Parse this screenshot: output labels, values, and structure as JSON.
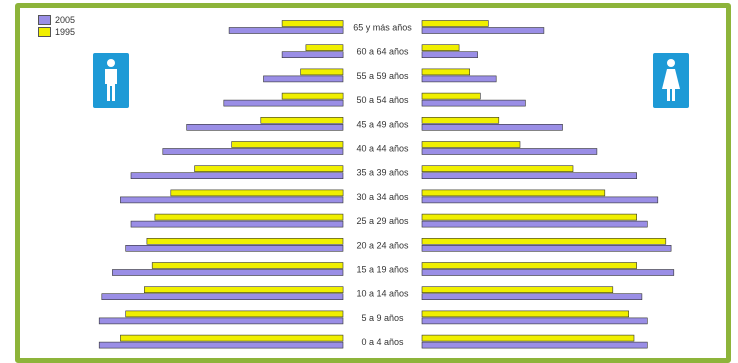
{
  "chart_data": {
    "type": "bar",
    "subtype": "population-pyramid",
    "categories": [
      "65 y más años",
      "60 a 64 años",
      "55 a 59 años",
      "50 a 54 años",
      "45 a 49 años",
      "40 a 44 años",
      "35 a 39 años",
      "30 a 34 años",
      "25 a 29 años",
      "20 a 24 años",
      "15 a 19 años",
      "10 a 14 años",
      "5 a 9 años",
      "0 a 4 años"
    ],
    "legend": [
      "2005",
      "1995"
    ],
    "legend_position": "top-left",
    "colors": {
      "2005": "#9a8ee6",
      "1995": "#f0ef00",
      "bar_border": "#333333",
      "frame": "#8db43a"
    },
    "axes_visible": false,
    "grid": false,
    "left_side": "male",
    "right_side": "female",
    "male": {
      "2005": [
        43,
        23,
        30,
        45,
        59,
        68,
        80,
        84,
        80,
        82,
        87,
        91,
        92,
        92
      ],
      "1995": [
        23,
        14,
        16,
        23,
        31,
        42,
        56,
        65,
        71,
        74,
        72,
        75,
        82,
        84
      ]
    },
    "female": {
      "2005": [
        46,
        21,
        28,
        39,
        53,
        66,
        81,
        89,
        85,
        94,
        95,
        83,
        85,
        85
      ],
      "1995": [
        25,
        14,
        18,
        22,
        29,
        37,
        57,
        69,
        81,
        92,
        81,
        72,
        78,
        80
      ]
    }
  },
  "icons": {
    "male": "male-person-icon",
    "female": "female-person-icon",
    "icon_color": "#1e9ad6"
  }
}
